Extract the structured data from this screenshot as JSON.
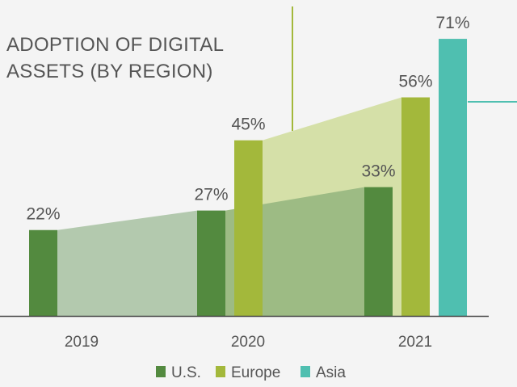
{
  "chart_data": {
    "type": "bar",
    "title": [
      "ADOPTION OF DIGITAL",
      "ASSETS (BY REGION)"
    ],
    "categories": [
      "2019",
      "2020",
      "2021"
    ],
    "series": [
      {
        "name": "U.S.",
        "values": [
          22,
          27,
          33
        ],
        "labels": [
          "22%",
          "27%",
          "33%"
        ],
        "color": "#538a3f"
      },
      {
        "name": "Europe",
        "values": [
          null,
          45,
          56
        ],
        "labels": [
          "",
          "45%",
          "56%"
        ],
        "color": "#a3b83b"
      },
      {
        "name": "Asia",
        "values": [
          null,
          null,
          71
        ],
        "labels": [
          "",
          "",
          "71%"
        ],
        "color": "#4fbfb0"
      }
    ],
    "ylim": [
      0,
      100
    ],
    "xlabel": "",
    "ylabel": "",
    "legend": "bottom-center",
    "colors": {
      "us_area": "#b3c9ae",
      "us_area_dark": "#9dbb84",
      "europe_area": "#d5e0a8",
      "accent_line": "#a3b83b",
      "teal_line": "#4fbfb0",
      "axis": "#444444"
    }
  }
}
